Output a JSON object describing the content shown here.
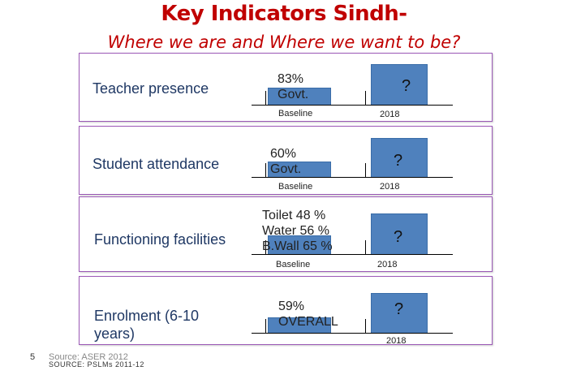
{
  "header": {
    "title": "Key Indicators Sindh-",
    "subtitle": "Where we are and Where we want to be?"
  },
  "chart_data": {
    "type": "bar",
    "categories": [
      "Baseline",
      "2018"
    ],
    "panels": [
      {
        "indicator": "Teacher presence",
        "baseline_text": [
          "83%",
          "Govt."
        ],
        "target_text": "?",
        "baseline_label": "Baseline",
        "target_label": "2018"
      },
      {
        "indicator": "Student attendance",
        "baseline_text": [
          "60%",
          "Govt."
        ],
        "target_text": "?",
        "baseline_label": "Baseline",
        "target_label": "2018"
      },
      {
        "indicator": "Functioning facilities",
        "baseline_text": [
          "Toilet 48 %",
          "Water 56 %",
          "B.Wall 65 %"
        ],
        "target_text": "?",
        "baseline_label": "Baseline",
        "target_label": "2018"
      },
      {
        "indicator": "Enrolment (6-10 years)",
        "baseline_text": [
          "59%",
          "OVERALL"
        ],
        "target_text": "?",
        "baseline_label": "",
        "target_label": "2018"
      }
    ]
  },
  "footer": {
    "slide_number": "5",
    "source1": "Source: ASER 2012",
    "source2": "SOURCE: PSLMs 2011-12"
  }
}
